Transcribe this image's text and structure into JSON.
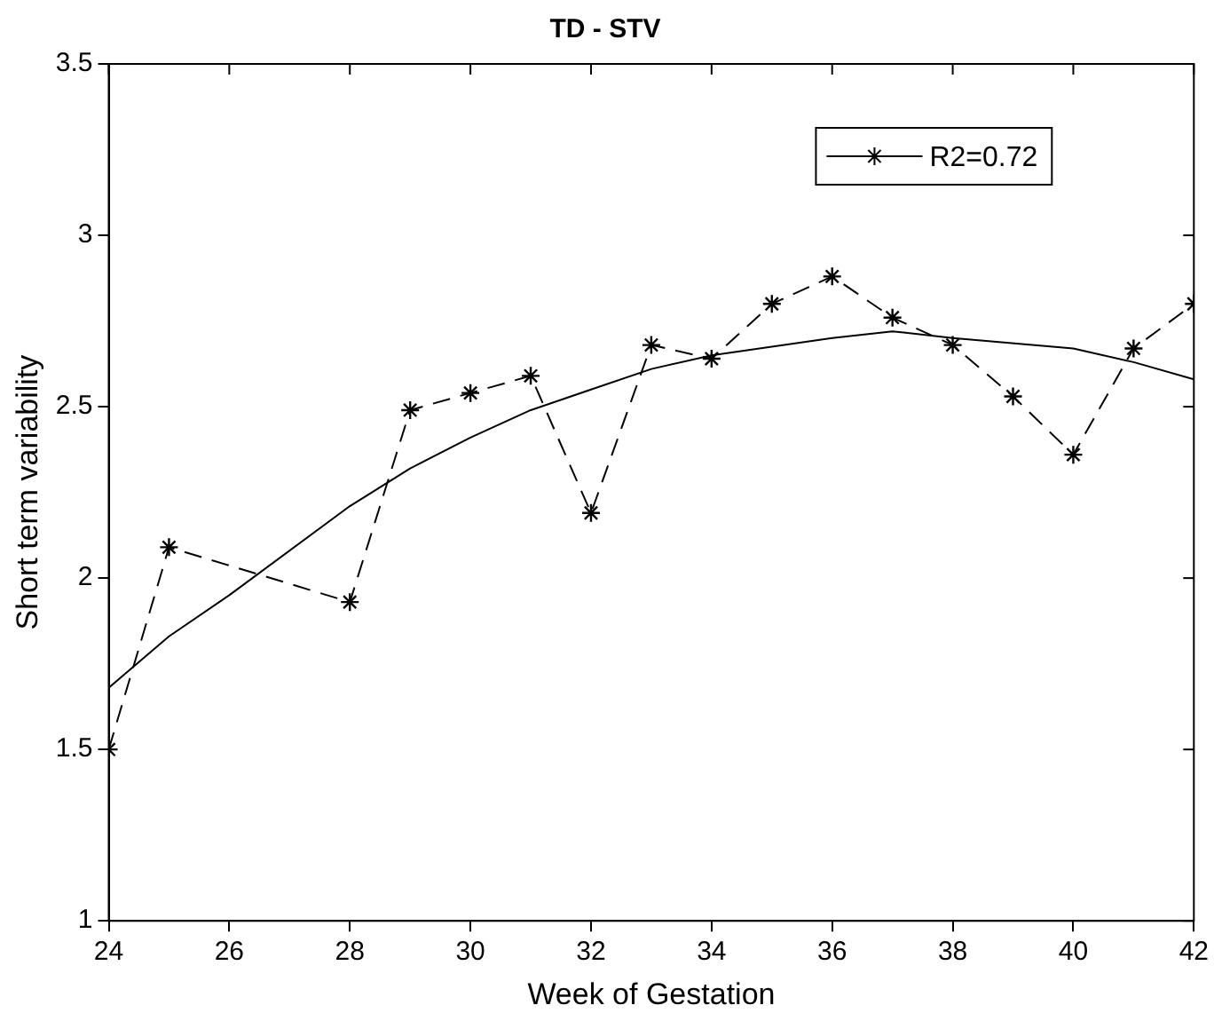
{
  "chart_data": {
    "type": "line",
    "title": "TD - STV",
    "xlabel": "Week of Gestation",
    "ylabel": "Short term variability",
    "xlim": [
      24,
      42
    ],
    "xticks": [
      24,
      26,
      28,
      30,
      32,
      34,
      36,
      38,
      40,
      42
    ],
    "ylim": [
      1,
      3.5
    ],
    "yticks": [
      1,
      1.5,
      2,
      2.5,
      3,
      3.5
    ],
    "grid": false,
    "legend": "top right",
    "series": [
      {
        "name": "R2=0.72",
        "color": "#000000",
        "marker": "cross",
        "line_style": "dashed",
        "x": [
          24,
          25,
          28,
          29,
          30,
          31,
          32,
          33,
          34,
          35,
          36,
          37,
          38,
          39,
          40,
          41,
          42
        ],
        "values": [
          1.5,
          2.09,
          1.93,
          2.49,
          2.54,
          2.59,
          2.19,
          2.68,
          2.64,
          2.8,
          2.88,
          2.76,
          2.68,
          2.53,
          2.36,
          2.67,
          2.8
        ]
      },
      {
        "type": "line",
        "color": "#000000",
        "marker": "none",
        "line_style": "solid",
        "x": [
          24,
          25,
          26,
          28,
          29,
          30,
          31,
          32,
          33,
          34,
          36,
          37,
          38,
          40,
          41,
          42
        ],
        "values": [
          1.68,
          1.83,
          1.95,
          2.21,
          2.32,
          2.41,
          2.49,
          2.55,
          2.61,
          2.65,
          2.7,
          2.72,
          2.7,
          2.67,
          2.63,
          2.58
        ]
      }
    ]
  }
}
